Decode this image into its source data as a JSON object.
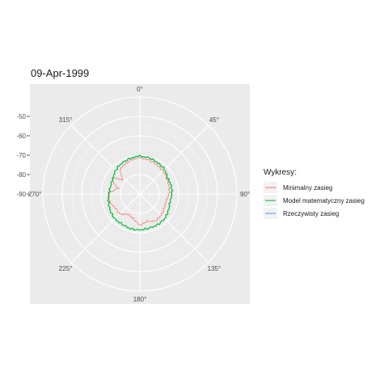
{
  "chart_data": {
    "type": "line",
    "coordinate_system": "polar",
    "title": "09-Apr-1999",
    "angle_axis": {
      "unit": "degrees",
      "start": "top",
      "direction": "clockwise",
      "ticks": [
        0,
        45,
        90,
        135,
        180,
        225,
        270,
        315
      ],
      "tick_labels": [
        "0°",
        "45°",
        "90°",
        "135°",
        "180°",
        "225°",
        "270°",
        "315°"
      ]
    },
    "radial_axis": {
      "range": [
        -90,
        -40
      ],
      "ticks": [
        -90,
        -80,
        -70,
        -60,
        -50
      ],
      "tick_labels": [
        "-90",
        "-80",
        "-70",
        "-60",
        "-50"
      ]
    },
    "grid": true,
    "legend": {
      "title": "Wykresy:",
      "position": "right"
    },
    "series": [
      {
        "name": "Minimalny zasieg",
        "color": "#F8766D",
        "angles": [
          0,
          15,
          30,
          45,
          60,
          75,
          90,
          105,
          120,
          135,
          150,
          165,
          180,
          195,
          210,
          225,
          240,
          255,
          270,
          285,
          295,
          300,
          310,
          320,
          330,
          345,
          360
        ],
        "values": [
          -71.3,
          -72.0,
          -72.5,
          -73.2,
          -74.0,
          -74.5,
          -75.0,
          -76.0,
          -75.5,
          -74.5,
          -74.0,
          -75.5,
          -74.0,
          -77.0,
          -78.0,
          -75.5,
          -75.5,
          -74.0,
          -74.0,
          -78.5,
          -74.5,
          -73.5,
          -79.0,
          -74.0,
          -73.0,
          -72.0,
          -71.3
        ]
      },
      {
        "name": "Model matematyczny zasieg",
        "color": "#00BA38",
        "angles": [
          0,
          15,
          30,
          45,
          60,
          75,
          90,
          105,
          120,
          135,
          150,
          165,
          180,
          195,
          210,
          225,
          240,
          255,
          270,
          285,
          300,
          315,
          330,
          345,
          360
        ],
        "values": [
          -70.5,
          -70.8,
          -71.5,
          -72.0,
          -73.5,
          -73.3,
          -73.5,
          -74.0,
          -73.0,
          -72.0,
          -71.7,
          -71.8,
          -71.5,
          -71.5,
          -72.0,
          -71.8,
          -72.5,
          -73.3,
          -74.0,
          -74.5,
          -74.0,
          -72.5,
          -71.6,
          -71.0,
          -70.5
        ]
      },
      {
        "name": "Rzeczywisty zasieg",
        "color": "#619CFF",
        "angles": [],
        "values": []
      }
    ]
  }
}
